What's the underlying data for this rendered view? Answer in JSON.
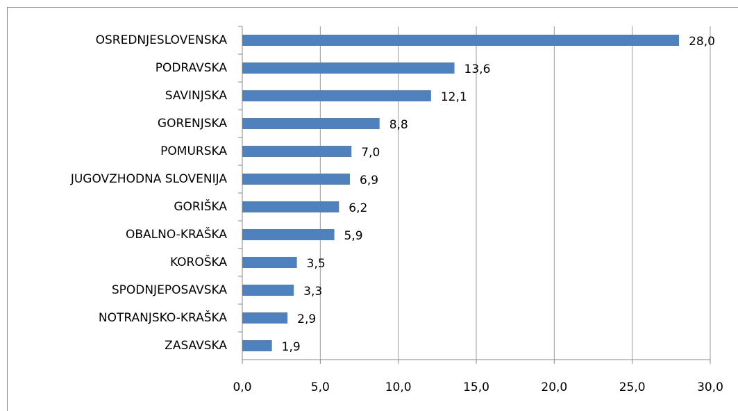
{
  "chart_data": {
    "type": "bar",
    "orientation": "horizontal",
    "categories": [
      "OSREDNJESLOVENSKA",
      "PODRAVSKA",
      "SAVINJSKA",
      "GORENJSKA",
      "POMURSKA",
      "JUGOVZHODNA SLOVENIJA",
      "GORIŠKA",
      "OBALNO-KRAŠKA",
      "KOROŠKA",
      "SPODNJEPOSAVSKA",
      "NOTRANJSKO-KRAŠKA",
      "ZASAVSKA"
    ],
    "values": [
      28.0,
      13.6,
      12.1,
      8.8,
      7.0,
      6.9,
      6.2,
      5.9,
      3.5,
      3.3,
      2.9,
      1.9
    ],
    "value_labels": [
      "28,0",
      "13,6",
      "12,1",
      "8,8",
      "7,0",
      "6,9",
      "6,2",
      "5,9",
      "3,5",
      "3,3",
      "2,9",
      "1,9"
    ],
    "color": "#4f81bd",
    "xlim": [
      0,
      30
    ],
    "xticks": [
      {
        "value": 0,
        "label": "0,0"
      },
      {
        "value": 5,
        "label": "5,0"
      },
      {
        "value": 10,
        "label": "10,0"
      },
      {
        "value": 15,
        "label": "15,0"
      },
      {
        "value": 20,
        "label": "20,0"
      },
      {
        "value": 25,
        "label": "25,0"
      },
      {
        "value": 30,
        "label": "30,0"
      }
    ],
    "grid": true
  }
}
